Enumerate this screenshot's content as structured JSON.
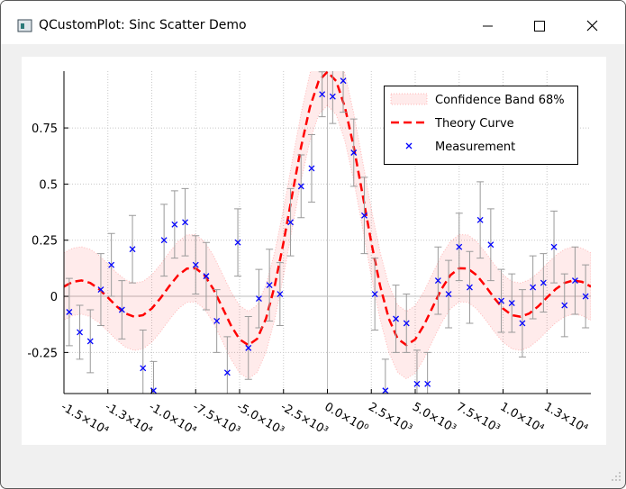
{
  "window": {
    "title": "QCustomPlot: Sinc Scatter Demo"
  },
  "chart_data": {
    "type": "scatter",
    "xlim": [
      -15000,
      15000
    ],
    "ylim": [
      -0.433,
      1.003
    ],
    "xticks": [
      {
        "value": -15000,
        "label": "-1.5×10⁴"
      },
      {
        "value": -12500,
        "label": "-1.3×10⁴"
      },
      {
        "value": -10000,
        "label": "-1.0×10⁴"
      },
      {
        "value": -7500,
        "label": "-7.5×10³"
      },
      {
        "value": -5000,
        "label": "-5.0×10³"
      },
      {
        "value": -2500,
        "label": "-2.5×10³"
      },
      {
        "value": 0,
        "label": "0.0×10⁰"
      },
      {
        "value": 2500,
        "label": "2.5×10³"
      },
      {
        "value": 5000,
        "label": "5.0×10³"
      },
      {
        "value": 7500,
        "label": "7.5×10³"
      },
      {
        "value": 10000,
        "label": "1.0×10⁴"
      },
      {
        "value": 12500,
        "label": "1.3×10⁴"
      }
    ],
    "yticks": [
      -0.25,
      0,
      0.25,
      0.5,
      0.75
    ],
    "grid": true,
    "legend": "top-right",
    "x": [
      -15000,
      -14500,
      -14000,
      -13500,
      -13000,
      -12500,
      -12000,
      -11500,
      -11000,
      -10500,
      -10000,
      -9500,
      -9000,
      -8500,
      -8000,
      -7500,
      -7000,
      -6500,
      -6000,
      -5500,
      -5000,
      -4500,
      -4000,
      -3500,
      -3000,
      -2500,
      -2000,
      -1500,
      -1000,
      -500,
      0,
      500,
      1000,
      1500,
      2000,
      2500,
      3000,
      3500,
      4000,
      4500,
      5000,
      5500,
      6000,
      6500,
      7000,
      7500,
      8000,
      8500,
      9000,
      9500,
      10000,
      10500,
      11000,
      11500,
      12000,
      12500,
      13000,
      13500,
      14000,
      14500,
      15000
    ],
    "series": [
      {
        "name": "Confidence Band 68%",
        "color": "#ff0000",
        "upper": [
          0.1934,
          0.2145,
          0.2208,
          0.2095,
          0.1823,
          0.1447,
          0.1053,
          0.0739,
          0.0591,
          0.0662,
          0.0956,
          0.1421,
          0.1958,
          0.2439,
          0.2737,
          0.2751,
          0.2439,
          0.1831,
          0.1034,
          0.0217,
          -0.0418,
          -0.0672,
          -0.0392,
          0.0498,
          0.197,
          0.3894,
          0.6046,
          0.815,
          0.9915,
          1.1089,
          1.15,
          1.1089,
          0.9915,
          0.815,
          0.6046,
          0.3894,
          0.197,
          0.0498,
          -0.0392,
          -0.0672,
          -0.0418,
          0.0217,
          0.1034,
          0.1831,
          0.2439,
          0.2751,
          0.2737,
          0.2439,
          0.1958,
          0.1421,
          0.0956,
          0.0662,
          0.0591,
          0.0739,
          0.1053,
          0.1447,
          0.1823,
          0.2095,
          0.2208,
          0.2145,
          0.1934
        ],
        "lower": [
          -0.1066,
          -0.0855,
          -0.0792,
          -0.0905,
          -0.1177,
          -0.1553,
          -0.1947,
          -0.2261,
          -0.2409,
          -0.2338,
          -0.2044,
          -0.1579,
          -0.1042,
          -0.0561,
          -0.0263,
          -0.0249,
          -0.0561,
          -0.1169,
          -0.1966,
          -0.2783,
          -0.3418,
          -0.3672,
          -0.3392,
          -0.2502,
          -0.103,
          0.0894,
          0.3046,
          0.515,
          0.6915,
          0.8089,
          0.85,
          0.8089,
          0.6915,
          0.515,
          0.3046,
          0.0894,
          -0.103,
          -0.2502,
          -0.3392,
          -0.3672,
          -0.3418,
          -0.2783,
          -0.1966,
          -0.1169,
          -0.0561,
          -0.0249,
          -0.0263,
          -0.0561,
          -0.1042,
          -0.1579,
          -0.2044,
          -0.2338,
          -0.2409,
          -0.2261,
          -0.1947,
          -0.1553,
          -0.1177,
          -0.0905,
          -0.0792,
          -0.0855,
          -0.1066
        ]
      },
      {
        "name": "Theory Curve",
        "color": "#ff0000",
        "values": [
          0.0434,
          0.0645,
          0.0708,
          0.0595,
          0.0323,
          -0.0053,
          -0.0447,
          -0.0761,
          -0.0909,
          -0.0838,
          -0.0544,
          -0.0079,
          0.0458,
          0.0939,
          0.1237,
          0.1251,
          0.0939,
          0.0331,
          -0.0466,
          -0.1283,
          -0.1918,
          -0.2172,
          -0.1892,
          -0.1002,
          0.047,
          0.2394,
          0.4546,
          0.665,
          0.8415,
          0.9589,
          1,
          0.9589,
          0.8415,
          0.665,
          0.4546,
          0.2394,
          0.047,
          -0.1002,
          -0.1892,
          -0.2172,
          -0.1918,
          -0.1283,
          -0.0466,
          0.0331,
          0.0939,
          0.1251,
          0.1237,
          0.0939,
          0.0458,
          -0.0079,
          -0.0544,
          -0.0838,
          -0.0909,
          -0.0761,
          -0.0447,
          -0.0053,
          0.0323,
          0.0595,
          0.0708,
          0.0645,
          0.0434
        ]
      },
      {
        "name": "Measurement",
        "color": "#0000ff",
        "x": [
          -14700,
          -14100,
          -13500,
          -12900,
          -12300,
          -11700,
          -11100,
          -10500,
          -9900,
          -9300,
          -8700,
          -8100,
          -7500,
          -6900,
          -6300,
          -5700,
          -5100,
          -4500,
          -3900,
          -3300,
          -2700,
          -2100,
          -1500,
          -900,
          -300,
          300,
          900,
          1500,
          2100,
          2700,
          3300,
          3900,
          4500,
          5100,
          5700,
          6300,
          6900,
          7500,
          8100,
          8700,
          9300,
          9900,
          10500,
          11100,
          11700,
          12300,
          12900,
          13500,
          14100,
          14700
        ],
        "values": [
          -0.07,
          -0.16,
          -0.2,
          0.03,
          0.14,
          -0.06,
          0.21,
          -0.32,
          -0.42,
          0.25,
          0.32,
          0.33,
          0.14,
          0.09,
          -0.11,
          -0.34,
          0.24,
          -0.23,
          -0.01,
          0.05,
          0.01,
          0.33,
          0.49,
          0.57,
          0.9,
          0.89,
          0.96,
          0.64,
          0.36,
          0.01,
          -0.42,
          -0.1,
          -0.12,
          -0.39,
          -0.39,
          0.07,
          0.01,
          0.22,
          0.04,
          0.34,
          0.23,
          -0.02,
          -0.03,
          -0.12,
          0.04,
          0.06,
          0.22,
          -0.04,
          0.07,
          0
        ],
        "errors": [
          0.15,
          0.12,
          0.14,
          0.16,
          0.14,
          0.13,
          0.15,
          0.17,
          0.13,
          0.16,
          0.15,
          0.15,
          0.13,
          0.15,
          0.14,
          0.16,
          0.15,
          0.14,
          0.13,
          0.16,
          0.14,
          0.15,
          0.14,
          0.15,
          0.1,
          0.12,
          0.14,
          0.15,
          0.17,
          0.16,
          0.14,
          0.15,
          0.13,
          0.15,
          0.14,
          0.15,
          0.15,
          0.15,
          0.16,
          0.17,
          0.16,
          0.14,
          0.13,
          0.15,
          0.14,
          0.13,
          0.16,
          0.14,
          0.15,
          0.14
        ]
      }
    ]
  }
}
